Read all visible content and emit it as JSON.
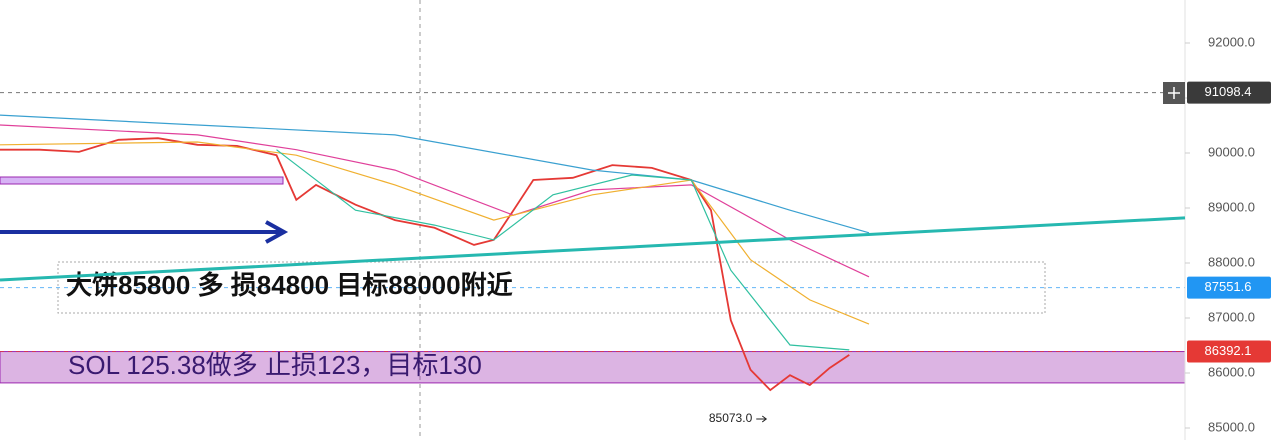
{
  "chart_data": {
    "type": "line",
    "xlim": [
      0,
      60
    ],
    "ylim": [
      84782,
      92782
    ],
    "yticks": [
      {
        "value": 92000,
        "label": "92000.0"
      },
      {
        "value": 91000,
        "label": "91000.0"
      },
      {
        "value": 90000,
        "label": "90000.0"
      },
      {
        "value": 89000,
        "label": "89000.0"
      },
      {
        "value": 88000,
        "label": "88000.0"
      },
      {
        "value": 87000,
        "label": "87000.0"
      },
      {
        "value": 86000,
        "label": "86000.0"
      },
      {
        "value": 85000,
        "label": "85000.0"
      }
    ],
    "series": [
      {
        "color": "#e53935",
        "x": [
          0,
          2,
          4,
          6,
          8,
          10,
          12,
          14,
          15,
          16,
          18,
          20,
          22,
          24,
          25,
          26,
          27,
          29,
          31,
          33,
          35,
          36,
          37,
          38,
          39,
          40,
          41,
          42,
          43
        ],
        "values": [
          90060,
          90060,
          90020,
          90240,
          90270,
          90150,
          90130,
          89960,
          89150,
          89420,
          89060,
          88780,
          88640,
          88330,
          88420,
          88960,
          89510,
          89550,
          89780,
          89730,
          89510,
          88960,
          86960,
          86060,
          85690,
          85960,
          85780,
          86090,
          86330
        ]
      },
      {
        "color": "#3aa0d0",
        "x": [
          0,
          10,
          20,
          30,
          35,
          40,
          44
        ],
        "values": [
          90690,
          90510,
          90330,
          89690,
          89510,
          88960,
          88550
        ]
      },
      {
        "color": "#e0409a",
        "x": [
          0,
          10,
          15,
          20,
          26,
          30,
          35,
          40,
          44
        ],
        "values": [
          90510,
          90330,
          90060,
          89690,
          88870,
          89330,
          89420,
          88420,
          87750
        ]
      },
      {
        "color": "#f0b030",
        "x": [
          0,
          10,
          15,
          20,
          25,
          30,
          35,
          38,
          41,
          44
        ],
        "values": [
          90150,
          90200,
          89960,
          89420,
          88780,
          89240,
          89510,
          88060,
          87330,
          86890
        ]
      },
      {
        "color": "#30c0a0",
        "x": [
          14,
          18,
          22,
          25,
          28,
          32,
          35,
          37,
          40,
          43
        ],
        "values": [
          90060,
          88960,
          88690,
          88420,
          89240,
          89600,
          89510,
          87870,
          86510,
          86420
        ]
      }
    ],
    "trendline": {
      "color": "#26b8b0",
      "x": [
        0,
        60
      ],
      "values": [
        87690,
        88820
      ]
    },
    "band": {
      "values": [
        85820,
        86390
      ],
      "color": "#9b27b0"
    },
    "markers": [
      {
        "value": 91098.4,
        "color": "#3a3a3a"
      },
      {
        "value": 87551.6,
        "color": "#2196f3"
      },
      {
        "value": 86392.1,
        "color": "#e53935"
      }
    ],
    "low": {
      "value": 85073,
      "label": "85073.0",
      "x": 39
    },
    "annotations": [
      "大饼85800 多 损84800 目标88000附近",
      "SOL 125.38做多 止损123，目标130"
    ]
  }
}
